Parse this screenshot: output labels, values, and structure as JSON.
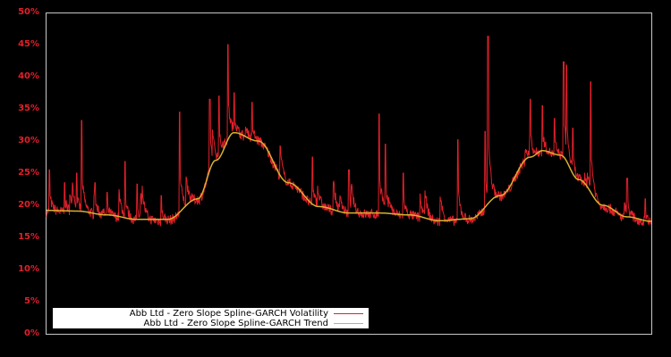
{
  "chart_data": {
    "type": "line",
    "title": "",
    "xlabel": "",
    "ylabel": "",
    "ylim": [
      0,
      50
    ],
    "yticks": [
      "0%",
      "5%",
      "10%",
      "15%",
      "20%",
      "25%",
      "30%",
      "35%",
      "40%",
      "45%",
      "50%"
    ],
    "grid": false,
    "legend_position": "lower left",
    "background": "#000000",
    "axis_color": "#c8c8c8",
    "tick_label_color": "#e0202a",
    "series": [
      {
        "name": "Abb Ltd - Zero Slope Spline-GARCH Volatility",
        "color": "#e0202a",
        "baseline_note": "daily series hugging trend with spikes",
        "spikes": [
          {
            "x": 0.005,
            "y": 25.5
          },
          {
            "x": 0.03,
            "y": 23.5
          },
          {
            "x": 0.05,
            "y": 25
          },
          {
            "x": 0.058,
            "y": 33.2
          },
          {
            "x": 0.08,
            "y": 23.5
          },
          {
            "x": 0.1,
            "y": 22
          },
          {
            "x": 0.13,
            "y": 26.8
          },
          {
            "x": 0.15,
            "y": 23.3
          },
          {
            "x": 0.19,
            "y": 21.5
          },
          {
            "x": 0.22,
            "y": 34.5
          },
          {
            "x": 0.27,
            "y": 36.5
          },
          {
            "x": 0.285,
            "y": 37
          },
          {
            "x": 0.3,
            "y": 45
          },
          {
            "x": 0.31,
            "y": 37.5
          },
          {
            "x": 0.34,
            "y": 36
          },
          {
            "x": 0.38,
            "y": 26.3
          },
          {
            "x": 0.44,
            "y": 27.5
          },
          {
            "x": 0.5,
            "y": 25.5
          },
          {
            "x": 0.55,
            "y": 34.2
          },
          {
            "x": 0.56,
            "y": 29.5
          },
          {
            "x": 0.59,
            "y": 25
          },
          {
            "x": 0.68,
            "y": 30.2
          },
          {
            "x": 0.725,
            "y": 31.5
          },
          {
            "x": 0.73,
            "y": 46.3
          },
          {
            "x": 0.8,
            "y": 36.5
          },
          {
            "x": 0.82,
            "y": 35.5
          },
          {
            "x": 0.84,
            "y": 33.5
          },
          {
            "x": 0.855,
            "y": 42.3
          },
          {
            "x": 0.86,
            "y": 41.8
          },
          {
            "x": 0.87,
            "y": 32
          },
          {
            "x": 0.9,
            "y": 39.2
          },
          {
            "x": 0.96,
            "y": 24.2
          },
          {
            "x": 0.99,
            "y": 21
          }
        ]
      },
      {
        "name": "Abb Ltd - Zero Slope Spline-GARCH Trend",
        "color": "#d9b030",
        "x": [
          0,
          0.05,
          0.1,
          0.15,
          0.2,
          0.25,
          0.28,
          0.31,
          0.35,
          0.4,
          0.45,
          0.5,
          0.55,
          0.6,
          0.65,
          0.7,
          0.75,
          0.8,
          0.82,
          0.85,
          0.88,
          0.92,
          0.96,
          1.0
        ],
        "values": [
          19.2,
          19.1,
          18.5,
          17.8,
          17.8,
          21,
          27,
          31.3,
          30,
          23.5,
          19.8,
          18.8,
          18.8,
          18.5,
          17.6,
          17.9,
          21.5,
          27.5,
          28.5,
          27.8,
          24,
          20,
          18.2,
          17.5
        ]
      }
    ]
  },
  "legend": {
    "items": [
      {
        "label": "Abb Ltd - Zero Slope Spline-GARCH Volatility",
        "color": "#e0202a"
      },
      {
        "label": "Abb Ltd - Zero Slope Spline-GARCH Trend",
        "color": "#d9b030"
      }
    ]
  }
}
